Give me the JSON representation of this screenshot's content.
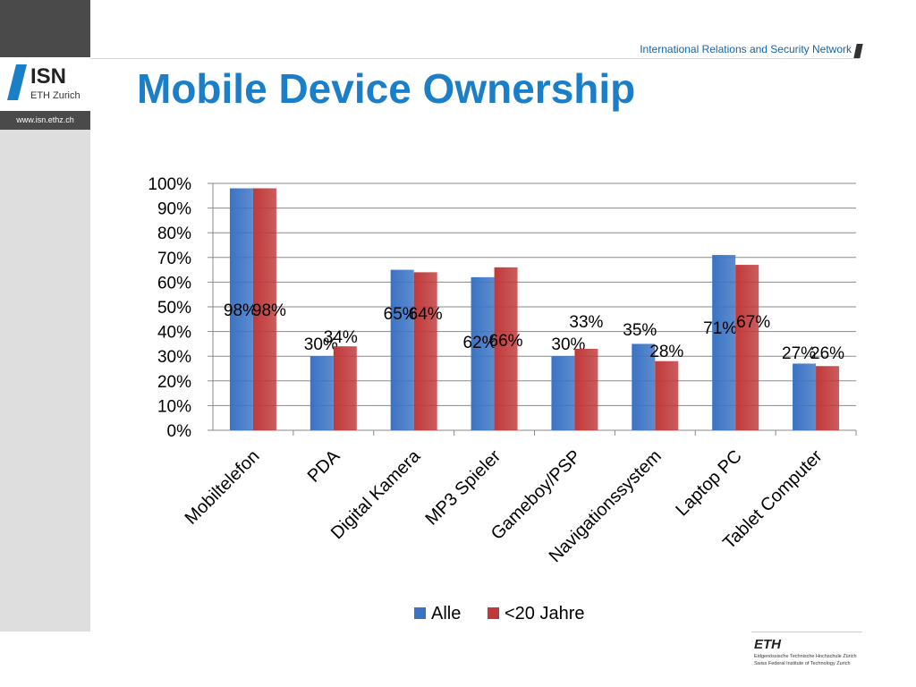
{
  "header": {
    "org_logo_text": "ISN",
    "org_logo_sub": "ETH Zurich",
    "url": "www.isn.ethz.ch",
    "network_name": "International Relations and Security Network"
  },
  "slide": {
    "title": "Mobile Device Ownership"
  },
  "footer": {
    "eth_logo": "ETH",
    "eth_line1": "Eidgenössische Technische Hochschule Zürich",
    "eth_line2": "Swiss Federal Institute of Technology Zurich"
  },
  "colors": {
    "series_alle": "#3a73c4",
    "series_u20": "#c0393a",
    "title": "#1a7fc8"
  },
  "chart_data": {
    "type": "bar",
    "categories": [
      "Mobiltelefon",
      "PDA",
      "Digital Kamera",
      "MP3 Spieler",
      "Gameboy/PSP",
      "Navigationssystem",
      "Laptop PC",
      "Tablet Computer"
    ],
    "series": [
      {
        "name": "Alle",
        "values": [
          98,
          30,
          65,
          62,
          30,
          35,
          71,
          27
        ],
        "labels": [
          "98%",
          "30%",
          "65%",
          "62%",
          "30%",
          "35%",
          "71%",
          "27%"
        ]
      },
      {
        "name": "<20 Jahre",
        "values": [
          98,
          34,
          64,
          66,
          33,
          28,
          67,
          26
        ],
        "labels": [
          "98%",
          "34%",
          "64%",
          "66%",
          "33%",
          "28%",
          "67%",
          "26%"
        ]
      }
    ],
    "ylim": [
      0,
      100
    ],
    "yticks": [
      "0%",
      "10%",
      "20%",
      "30%",
      "40%",
      "50%",
      "60%",
      "70%",
      "80%",
      "90%",
      "100%"
    ],
    "grid": true,
    "legend": "bottom"
  }
}
